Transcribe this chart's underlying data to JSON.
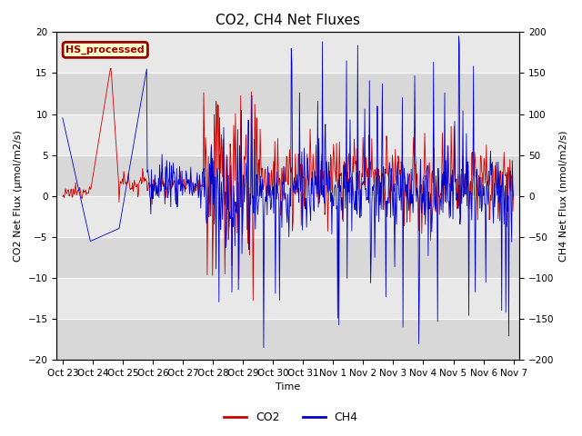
{
  "title": "CO2, CH4 Net Fluxes",
  "ylabel_left": "CO2 Net Flux (μmol/m2/s)",
  "ylabel_right": "CH4 Net Flux (nmol/m2/s)",
  "xlabel": "Time",
  "ylim_left": [
    -20,
    20
  ],
  "ylim_right": [
    -200,
    200
  ],
  "yticks_left": [
    -20,
    -15,
    -10,
    -5,
    0,
    5,
    10,
    15,
    20
  ],
  "yticks_right": [
    -200,
    -150,
    -100,
    -50,
    0,
    50,
    100,
    150,
    200
  ],
  "xtick_labels": [
    "Oct 23",
    "Oct 24",
    "Oct 25",
    "Oct 26",
    "Oct 27",
    "Oct 28",
    "Oct 29",
    "Oct 30",
    "Oct 31",
    "Nov 1",
    "Nov 2",
    "Nov 3",
    "Nov 4",
    "Nov 5",
    "Nov 6",
    "Nov 7"
  ],
  "annotation_text": "HS_processed",
  "legend_labels": [
    "CO2",
    "CH4"
  ],
  "co2_color": "#CC0000",
  "ch4_color": "#0000CC",
  "bg_color_light": "#E8E8E8",
  "bg_color_dark": "#D0D0D0",
  "grid_color": "white",
  "annotation_bg": "#FFFFCC",
  "annotation_border": "#990000",
  "title_fontsize": 11,
  "axis_label_fontsize": 8,
  "tick_fontsize": 7.5,
  "legend_fontsize": 9
}
